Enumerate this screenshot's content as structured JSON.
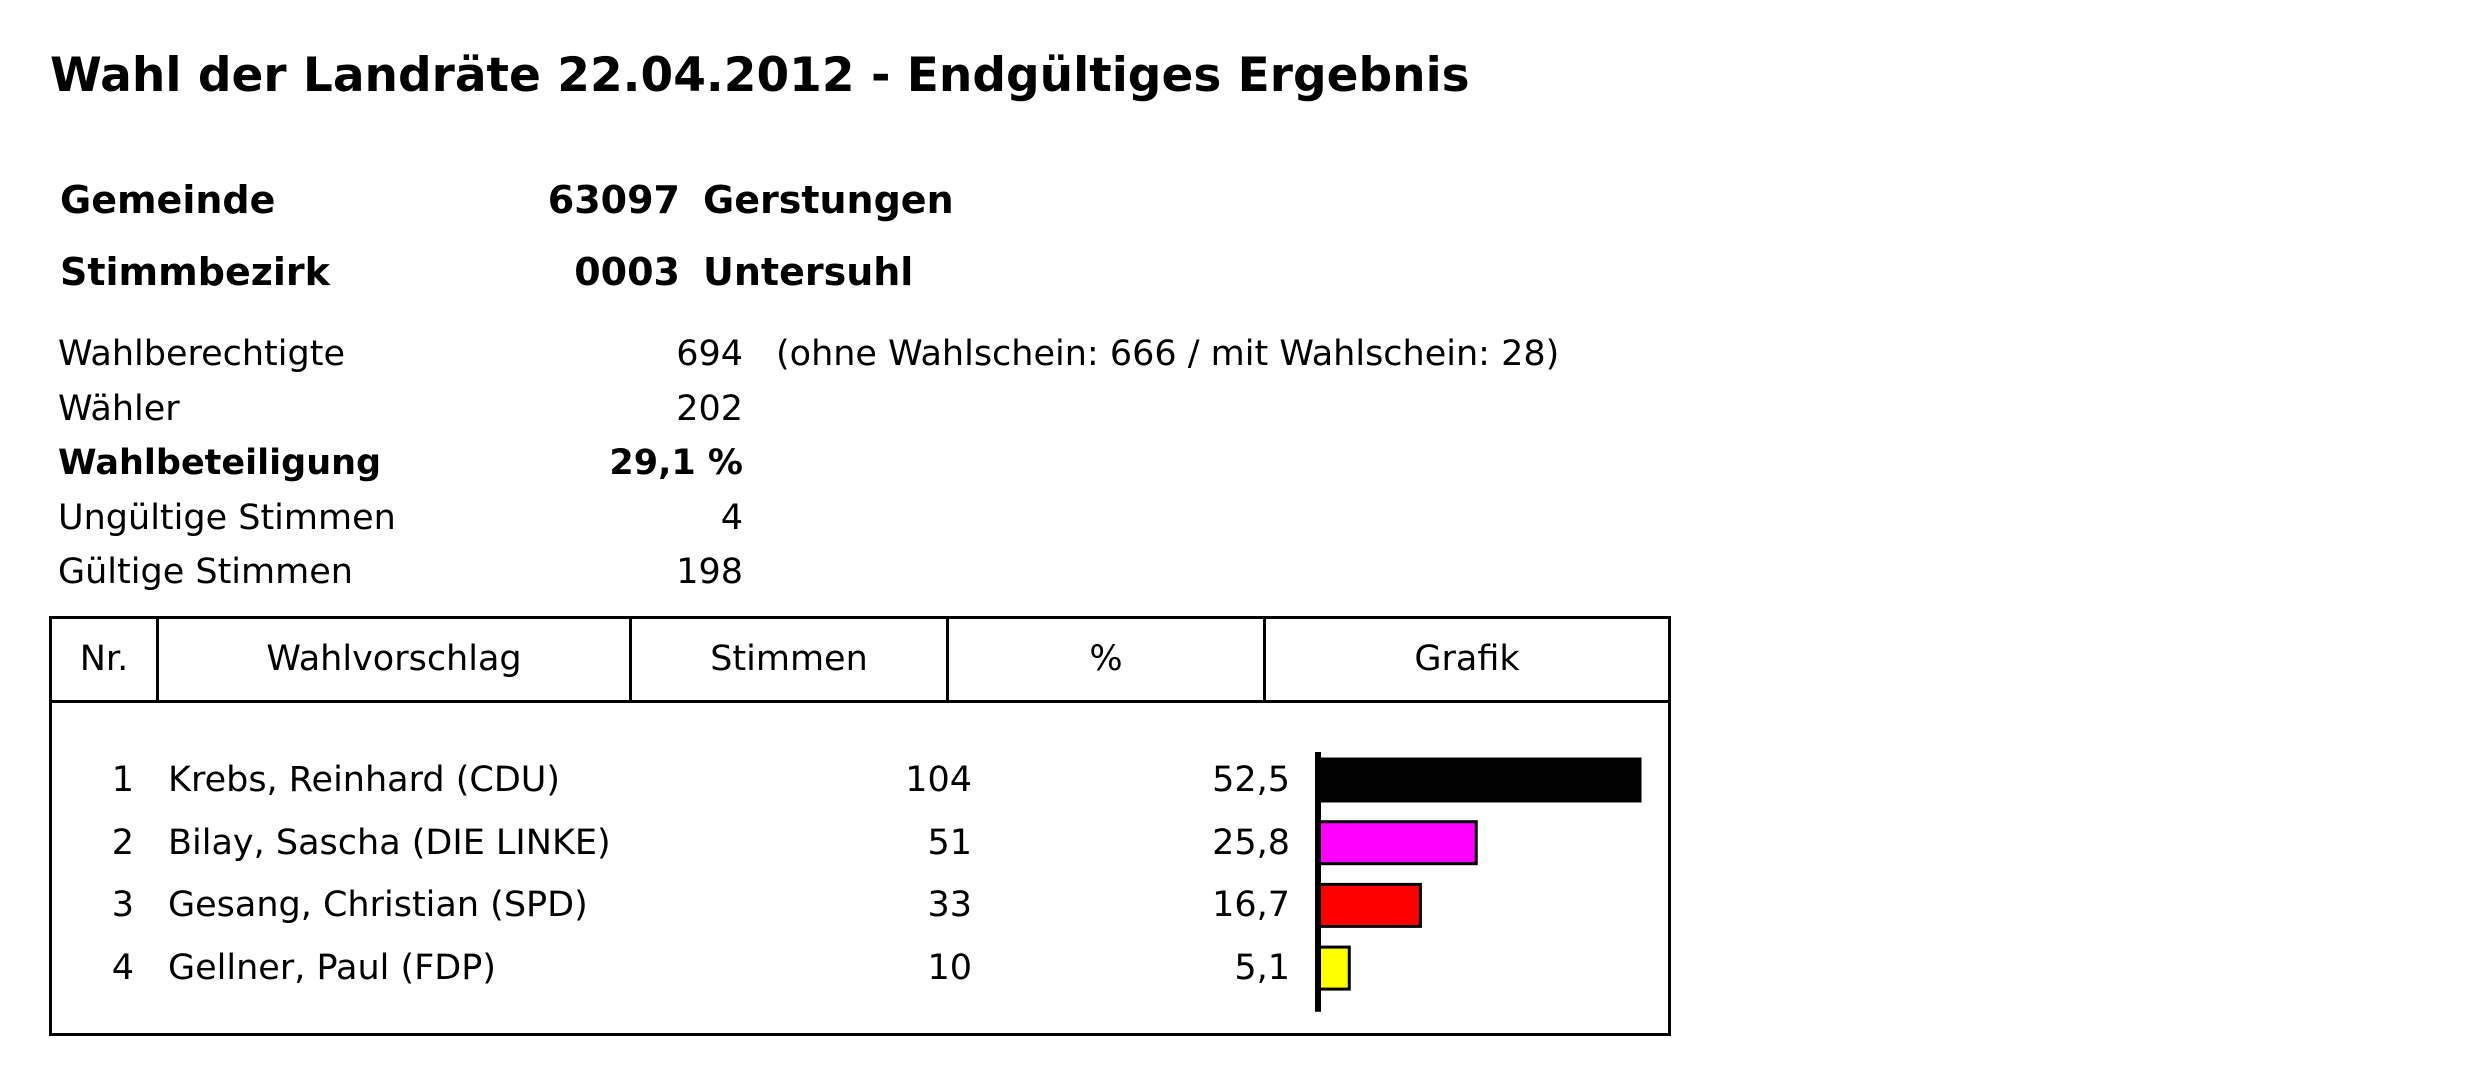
{
  "title": "Wahl der Landräte 22.04.2012 - Endgültiges Ergebnis",
  "header": {
    "gemeinde": {
      "label": "Gemeinde",
      "code": "63097",
      "name": "Gerstungen"
    },
    "stimmbezirk": {
      "label": "Stimmbezirk",
      "code": "0003",
      "name": "Untersuhl"
    }
  },
  "stats": {
    "wahlberechtigte": {
      "label": "Wahlberechtigte",
      "value": "694",
      "extra": "(ohne Wahlschein: 666 / mit Wahlschein: 28)"
    },
    "waehler": {
      "label": "Wähler",
      "value": "202"
    },
    "wahlbeteiligung": {
      "label": "Wahlbeteiligung",
      "value": "29,1 %"
    },
    "ungueltige": {
      "label": "Ungültige Stimmen",
      "value": "4"
    },
    "gueltige": {
      "label": "Gültige Stimmen",
      "value": "198"
    }
  },
  "table": {
    "headers": {
      "nr": "Nr.",
      "wahlvorschlag": "Wahlvorschlag",
      "stimmen": "Stimmen",
      "prozent": "%",
      "grafik": "Grafik"
    },
    "rows": [
      {
        "nr": "1",
        "name": "Krebs, Reinhard (CDU)",
        "stimmen": "104",
        "prozent": "52,5"
      },
      {
        "nr": "2",
        "name": "Bilay, Sascha (DIE LINKE)",
        "stimmen": "51",
        "prozent": "25,8"
      },
      {
        "nr": "3",
        "name": "Gesang, Christian (SPD)",
        "stimmen": "33",
        "prozent": "16,7"
      },
      {
        "nr": "4",
        "name": "Gellner, Paul (FDP)",
        "stimmen": "10",
        "prozent": "5,1"
      }
    ]
  },
  "chart_data": {
    "type": "bar",
    "categories": [
      "Krebs, Reinhard (CDU)",
      "Bilay, Sascha (DIE LINKE)",
      "Gesang, Christian (SPD)",
      "Gellner, Paul (FDP)"
    ],
    "values": [
      52.5,
      25.8,
      16.7,
      5.1
    ],
    "colors": [
      "#000000",
      "#ff00ff",
      "#ff0000",
      "#ffff00"
    ],
    "xlim": [
      0,
      52.5
    ],
    "orientation": "horizontal"
  }
}
